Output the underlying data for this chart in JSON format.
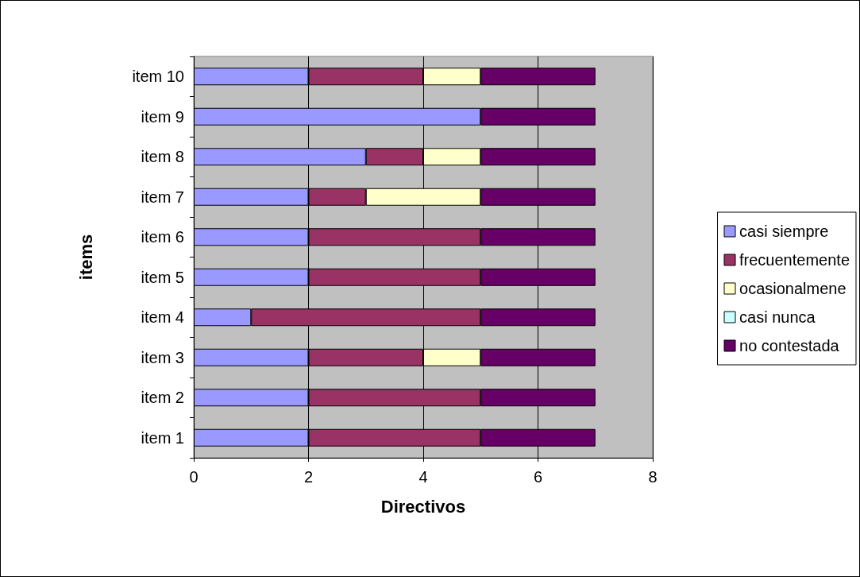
{
  "chart_data": {
    "type": "bar",
    "orientation": "horizontal",
    "stacked": true,
    "xlabel": "Directivos",
    "ylabel": "items",
    "categories": [
      "item 10",
      "item 9",
      "item 8",
      "item 7",
      "item 6",
      "item 5",
      "item 4",
      "item 3",
      "item 2",
      "item 1"
    ],
    "series": [
      {
        "name": "casi siempre",
        "color": "#9999ff",
        "values": [
          2,
          5,
          3,
          2,
          2,
          2,
          1,
          2,
          2,
          2
        ]
      },
      {
        "name": "frecuentemente",
        "color": "#993366",
        "values": [
          2,
          0,
          1,
          1,
          3,
          3,
          4,
          2,
          3,
          3
        ]
      },
      {
        "name": "ocasionalmene",
        "color": "#ffffcc",
        "values": [
          1,
          0,
          1,
          2,
          0,
          0,
          0,
          1,
          0,
          0
        ]
      },
      {
        "name": "casi nunca",
        "color": "#ccffff",
        "values": [
          0,
          0,
          0,
          0,
          0,
          0,
          0,
          0,
          0,
          0
        ]
      },
      {
        "name": "no contestada",
        "color": "#660066",
        "values": [
          2,
          2,
          2,
          2,
          2,
          2,
          2,
          2,
          2,
          2
        ]
      }
    ],
    "xlim": [
      0,
      8
    ],
    "xticks": [
      0,
      2,
      4,
      6,
      8
    ],
    "grid": "x",
    "legend": "right"
  }
}
